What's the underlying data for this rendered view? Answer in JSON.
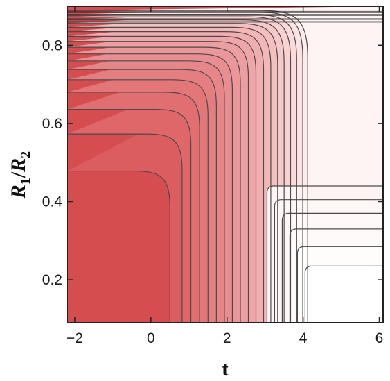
{
  "chart_data": {
    "type": "contour",
    "xlabel": "t",
    "ylabel_main": "R",
    "ylabel_sub1": "1",
    "ylabel_slash": "/",
    "ylabel_sub2": "2",
    "xlim": [
      -2.2,
      6.1
    ],
    "ylim": [
      0.09,
      0.9
    ],
    "x_ticks": [
      {
        "value": -2,
        "label": "−2"
      },
      {
        "value": 0,
        "label": "0"
      },
      {
        "value": 2,
        "label": "2"
      },
      {
        "value": 4,
        "label": "4"
      },
      {
        "value": 6,
        "label": "6"
      }
    ],
    "y_ticks": [
      {
        "value": 0.2,
        "label": "0.2"
      },
      {
        "value": 0.4,
        "label": "0.4"
      },
      {
        "value": 0.6,
        "label": "0.6"
      },
      {
        "value": 0.8,
        "label": "0.8"
      }
    ],
    "colormap": {
      "high": "#d64d50",
      "low": "#ffffff",
      "line": "#4a4a4a"
    },
    "contours": [
      {
        "t_vertical": 0.5,
        "ratio_horizontal": 0.478,
        "fill": "#dc5d60"
      },
      {
        "t_vertical": 0.82,
        "ratio_horizontal": 0.573,
        "fill": "#df6669"
      },
      {
        "t_vertical": 1.05,
        "ratio_horizontal": 0.636,
        "fill": "#e16e71"
      },
      {
        "t_vertical": 1.28,
        "ratio_horizontal": 0.68,
        "fill": "#e37679"
      },
      {
        "t_vertical": 1.5,
        "ratio_horizontal": 0.712,
        "fill": "#e57e81"
      },
      {
        "t_vertical": 1.72,
        "ratio_horizontal": 0.738,
        "fill": "#e78689"
      },
      {
        "t_vertical": 1.93,
        "ratio_horizontal": 0.76,
        "fill": "#e98e90"
      },
      {
        "t_vertical": 2.14,
        "ratio_horizontal": 0.778,
        "fill": "#eb9698"
      },
      {
        "t_vertical": 2.35,
        "ratio_horizontal": 0.795,
        "fill": "#ed9ea0"
      },
      {
        "t_vertical": 2.56,
        "ratio_horizontal": 0.81,
        "fill": "#efa6a8"
      },
      {
        "t_vertical": 2.76,
        "ratio_horizontal": 0.823,
        "fill": "#f1aeb0"
      },
      {
        "t_vertical": 2.96,
        "ratio_horizontal": 0.835,
        "fill": "#f3b7b8"
      },
      {
        "t_vertical": 3.15,
        "ratio_horizontal": 0.846,
        "fill": "#f5bfc0"
      },
      {
        "t_vertical": 3.33,
        "ratio_horizontal": 0.856,
        "fill": "#f7c8c9"
      },
      {
        "t_vertical": 3.5,
        "ratio_horizontal": 0.865,
        "fill": "#f9d1d1"
      },
      {
        "t_vertical": 3.67,
        "ratio_horizontal": 0.873,
        "fill": "#fadada"
      },
      {
        "t_vertical": 3.83,
        "ratio_horizontal": 0.879,
        "fill": "#fce3e3"
      },
      {
        "t_vertical": 3.99,
        "ratio_horizontal": 0.885,
        "fill": "#fdecec"
      },
      {
        "t_vertical": 4.12,
        "ratio_horizontal": 0.889,
        "fill": "#fef4f4"
      }
    ],
    "bottom_right_contours": [
      {
        "t_vertical": 3.05,
        "ratio_horizontal": 0.44
      },
      {
        "t_vertical": 3.25,
        "ratio_horizontal": 0.405
      },
      {
        "t_vertical": 3.45,
        "ratio_horizontal": 0.37
      },
      {
        "t_vertical": 3.65,
        "ratio_horizontal": 0.33
      },
      {
        "t_vertical": 3.85,
        "ratio_horizontal": 0.285
      },
      {
        "t_vertical": 4.05,
        "ratio_horizontal": 0.235
      }
    ]
  }
}
